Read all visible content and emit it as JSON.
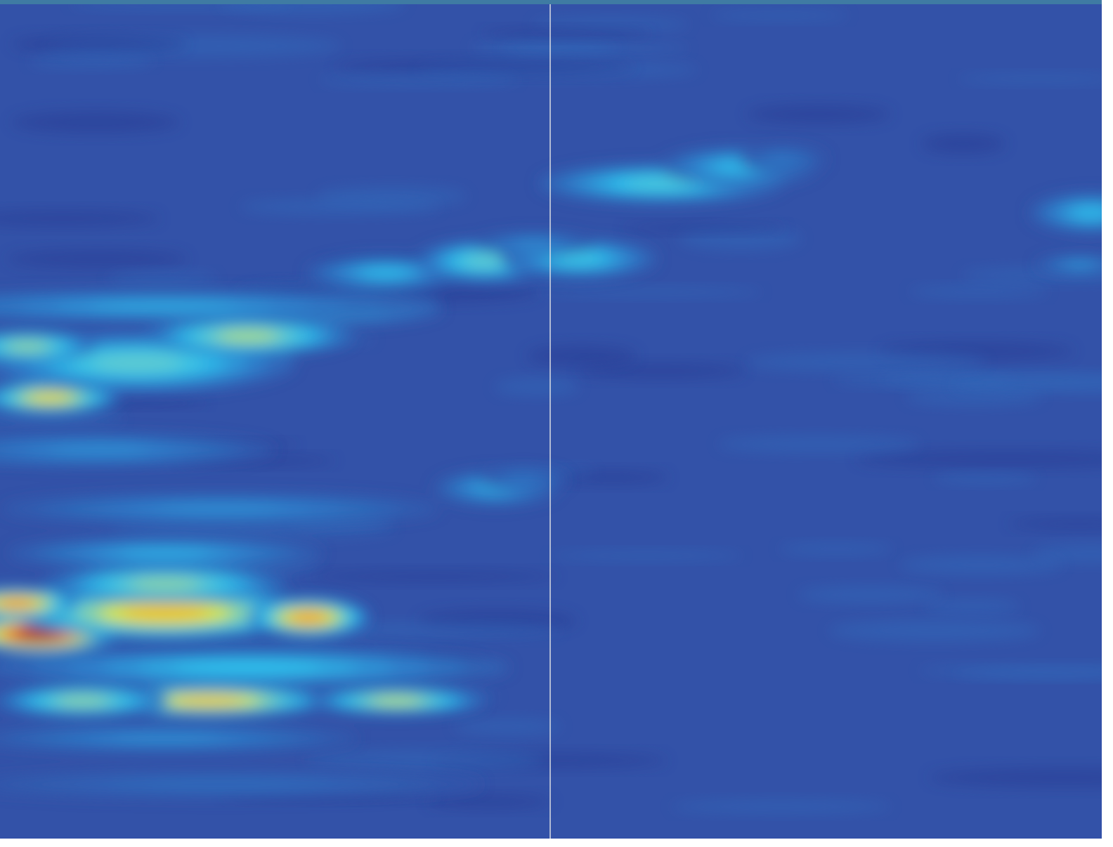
{
  "chart_data": {
    "type": "heatmap",
    "title": "",
    "xlabel": "",
    "ylabel": "",
    "colormap": "jet",
    "colorbar": false,
    "axes_visible": false,
    "grid": false,
    "panels": 2,
    "event_marker": {
      "orientation": "vertical",
      "color": "#e6e6e6"
    },
    "x_range": [
      0,
      2
    ],
    "y_range": [
      0,
      1
    ],
    "value_range": [
      0,
      1
    ],
    "background_value": 0.14,
    "hotspots": [
      {
        "x": 0.07,
        "y": 0.755,
        "sx": 0.09,
        "sy": 0.014,
        "v": 1.0
      },
      {
        "x": 0.3,
        "y": 0.73,
        "sx": 0.18,
        "sy": 0.02,
        "v": 0.72
      },
      {
        "x": 0.56,
        "y": 0.735,
        "sx": 0.07,
        "sy": 0.015,
        "v": 0.78
      },
      {
        "x": 0.03,
        "y": 0.718,
        "sx": 0.07,
        "sy": 0.012,
        "v": 0.8
      },
      {
        "x": 0.3,
        "y": 0.695,
        "sx": 0.14,
        "sy": 0.014,
        "v": 0.55
      },
      {
        "x": 0.38,
        "y": 0.835,
        "sx": 0.14,
        "sy": 0.012,
        "v": 0.72
      },
      {
        "x": 0.72,
        "y": 0.835,
        "sx": 0.1,
        "sy": 0.01,
        "v": 0.6
      },
      {
        "x": 0.15,
        "y": 0.835,
        "sx": 0.1,
        "sy": 0.012,
        "v": 0.55
      },
      {
        "x": 0.45,
        "y": 0.795,
        "sx": 0.3,
        "sy": 0.015,
        "v": 0.4
      },
      {
        "x": 0.3,
        "y": 0.658,
        "sx": 0.18,
        "sy": 0.012,
        "v": 0.36
      },
      {
        "x": 0.3,
        "y": 0.88,
        "sx": 0.22,
        "sy": 0.01,
        "v": 0.3
      },
      {
        "x": 0.9,
        "y": 0.58,
        "sx": 0.07,
        "sy": 0.013,
        "v": 0.35
      },
      {
        "x": 0.4,
        "y": 0.605,
        "sx": 0.25,
        "sy": 0.012,
        "v": 0.3
      },
      {
        "x": 0.18,
        "y": 0.534,
        "sx": 0.2,
        "sy": 0.012,
        "v": 0.3
      },
      {
        "x": 0.09,
        "y": 0.472,
        "sx": 0.08,
        "sy": 0.012,
        "v": 0.68
      },
      {
        "x": 0.25,
        "y": 0.43,
        "sx": 0.18,
        "sy": 0.022,
        "v": 0.48
      },
      {
        "x": 0.45,
        "y": 0.398,
        "sx": 0.12,
        "sy": 0.014,
        "v": 0.58
      },
      {
        "x": 0.58,
        "y": 0.365,
        "sx": 0.14,
        "sy": 0.012,
        "v": 0.5
      },
      {
        "x": 0.05,
        "y": 0.41,
        "sx": 0.08,
        "sy": 0.012,
        "v": 0.55
      },
      {
        "x": 0.3,
        "y": 0.362,
        "sx": 0.3,
        "sy": 0.012,
        "v": 0.35
      },
      {
        "x": 0.7,
        "y": 0.322,
        "sx": 0.09,
        "sy": 0.013,
        "v": 0.38
      },
      {
        "x": 0.88,
        "y": 0.308,
        "sx": 0.08,
        "sy": 0.016,
        "v": 0.48
      },
      {
        "x": 1.05,
        "y": 0.305,
        "sx": 0.09,
        "sy": 0.015,
        "v": 0.42
      },
      {
        "x": 0.97,
        "y": 0.288,
        "sx": 0.07,
        "sy": 0.009,
        "v": 0.3
      },
      {
        "x": 1.2,
        "y": 0.215,
        "sx": 0.14,
        "sy": 0.015,
        "v": 0.45
      },
      {
        "x": 1.34,
        "y": 0.195,
        "sx": 0.09,
        "sy": 0.015,
        "v": 0.38
      },
      {
        "x": 1.42,
        "y": 0.186,
        "sx": 0.05,
        "sy": 0.01,
        "v": 0.25
      },
      {
        "x": 1.98,
        "y": 0.25,
        "sx": 0.07,
        "sy": 0.015,
        "v": 0.38
      },
      {
        "x": 1.96,
        "y": 0.312,
        "sx": 0.05,
        "sy": 0.006,
        "v": 0.33
      },
      {
        "x": 0.95,
        "y": 0.57,
        "sx": 0.05,
        "sy": 0.008,
        "v": 0.25
      },
      {
        "x": 0.4,
        "y": 0.935,
        "sx": 0.3,
        "sy": 0.01,
        "v": 0.22
      }
    ]
  }
}
